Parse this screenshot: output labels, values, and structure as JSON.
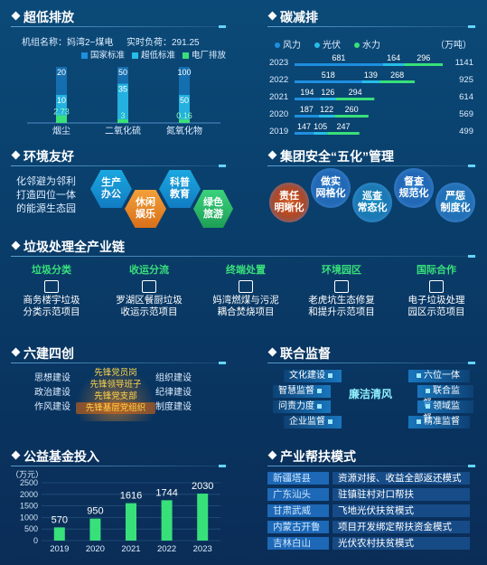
{
  "ultra_low": {
    "title": "超低排放",
    "unit_label": "机组名称：妈湾2−煤电",
    "load_label": "实时负荷：291.25",
    "legend": [
      "国家标准",
      "超低标准",
      "电厂排放"
    ],
    "colors": {
      "national": "#1e8fe0",
      "ultra": "#27bde8",
      "plant": "#38e07a"
    },
    "chart_data": {
      "type": "bar",
      "categories": [
        "烟尘",
        "二氧化硫",
        "氮氧化物"
      ],
      "series": [
        {
          "name": "国家标准",
          "values": [
            20,
            50,
            100
          ]
        },
        {
          "name": "超低标准",
          "values": [
            10,
            35,
            50
          ]
        },
        {
          "name": "电厂排放",
          "values": [
            2.73,
            3,
            0.16
          ]
        }
      ]
    }
  },
  "carbon": {
    "title": "碳减排",
    "legend": [
      "风力",
      "光伏",
      "水力"
    ],
    "unit": "（万吨）",
    "colors": {
      "wind": "#1e8fe0",
      "solar": "#27bde8",
      "hydro": "#38e07a"
    },
    "chart_data": {
      "type": "bar",
      "orientation": "horizontal",
      "years": [
        "2023",
        "2022",
        "2021",
        "2020",
        "2019"
      ],
      "series": [
        {
          "name": "风力",
          "values": [
            681,
            518,
            194,
            187,
            147
          ]
        },
        {
          "name": "光伏",
          "values": [
            164,
            139,
            126,
            122,
            105
          ]
        },
        {
          "name": "水力",
          "values": [
            296,
            268,
            294,
            260,
            247
          ]
        }
      ],
      "totals": [
        1141,
        925,
        614,
        569,
        499
      ]
    }
  },
  "eco": {
    "title": "环境友好",
    "text": [
      "化邻避为邻利",
      "打造四位一体",
      "的能源生态园"
    ],
    "hexes": [
      "生产\n办公",
      "休闲\n娱乐",
      "科普\n教育",
      "绿色\n旅游"
    ]
  },
  "safety": {
    "title": "集团安全“五化”管理",
    "items": [
      "责任\n明晰化",
      "做实\n网格化",
      "巡查\n常态化",
      "督查\n规范化",
      "严惩\n制度化"
    ]
  },
  "waste": {
    "title": "垃圾处理全产业链",
    "cols": [
      {
        "head": "垃圾分类",
        "desc": "商务楼宇垃圾\n分类示范项目"
      },
      {
        "head": "收运分流",
        "desc": "罗湖区餐厨垃圾\n收运示范项目"
      },
      {
        "head": "终端处置",
        "desc": "妈湾燃煤与污泥\n耦合焚烧项目"
      },
      {
        "head": "环境园区",
        "desc": "老虎坑生态修复\n和提升示范项目"
      },
      {
        "head": "国际合作",
        "desc": "电子垃圾处理\n园区示范项目"
      }
    ]
  },
  "six_four": {
    "title": "六建四创",
    "left": [
      "思想建设",
      "政治建设",
      "作风建设"
    ],
    "right": [
      "组织建设",
      "纪律建设",
      "制度建设"
    ],
    "center": [
      "先锋党员岗",
      "先锋领导班子",
      "先锋党支部",
      "先锋基层党组织"
    ]
  },
  "joint": {
    "title": "联合监督",
    "left": [
      "文化建设",
      "智慧监督",
      "问责力度",
      "企业监督"
    ],
    "right": [
      "六位一体",
      "联合监督",
      "领域监督",
      "精准监督"
    ],
    "center": "廉洁清风"
  },
  "fund": {
    "title": "公益基金投入",
    "unit": "（万元）",
    "color": "#38e07a",
    "chart_data": {
      "type": "bar",
      "categories": [
        "2019",
        "2020",
        "2021",
        "2022",
        "2023"
      ],
      "values": [
        570,
        950,
        1616,
        1744,
        2030
      ],
      "yticks": [
        "2500",
        "2000",
        "1500",
        "1000",
        "500",
        "0"
      ],
      "ylim": [
        0,
        2500
      ]
    }
  },
  "poverty": {
    "title": "产业帮扶模式",
    "rows": [
      {
        "k": "新疆塔县",
        "v": "资源对接、收益全部返还模式"
      },
      {
        "k": "广东汕头",
        "v": "驻镇驻村对口帮扶"
      },
      {
        "k": "甘肃武威",
        "v": "飞地光伏扶贫模式"
      },
      {
        "k": "内蒙古开鲁",
        "v": "项目开发绑定帮扶资金模式"
      },
      {
        "k": "吉林白山",
        "v": "光伏农村扶贫模式"
      }
    ]
  }
}
